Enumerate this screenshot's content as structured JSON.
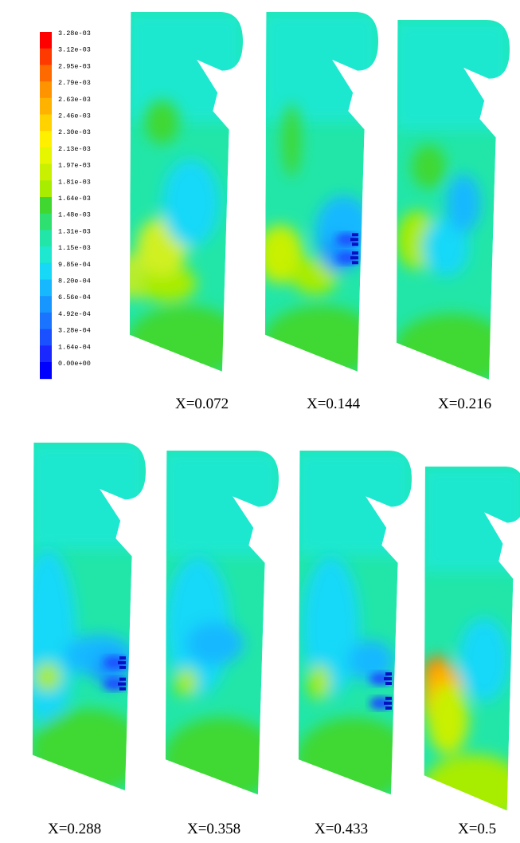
{
  "legend": {
    "labels": [
      "3.28e-03",
      "3.12e-03",
      "2.95e-03",
      "2.79e-03",
      "2.63e-03",
      "2.46e-03",
      "2.30e-03",
      "2.13e-03",
      "1.97e-03",
      "1.81e-03",
      "1.64e-03",
      "1.48e-03",
      "1.31e-03",
      "1.15e-03",
      "9.85e-04",
      "8.20e-04",
      "6.56e-04",
      "4.92e-04",
      "3.28e-04",
      "1.64e-04",
      "0.00e+00"
    ],
    "colors": [
      "#ff0000",
      "#ff3a00",
      "#ff6a00",
      "#ff9400",
      "#ffb200",
      "#ffd200",
      "#fff000",
      "#e6f500",
      "#c8f000",
      "#a8ec00",
      "#40d830",
      "#2ee070",
      "#22e6a8",
      "#1ee8d0",
      "#18d8f8",
      "#18b8ff",
      "#1896ff",
      "#1a74ff",
      "#1a50ff",
      "#1a28ff",
      "#0000ff"
    ]
  },
  "panels": [
    {
      "caption": "X=0.072",
      "variant": 0
    },
    {
      "caption": "X=0.144",
      "variant": 1
    },
    {
      "caption": "X=0.216",
      "variant": 2
    },
    {
      "caption": "X=0.288",
      "variant": 3
    },
    {
      "caption": "X=0.358",
      "variant": 4
    },
    {
      "caption": "X=0.433",
      "variant": 5
    },
    {
      "caption": "X=0.5",
      "variant": 6
    }
  ]
}
